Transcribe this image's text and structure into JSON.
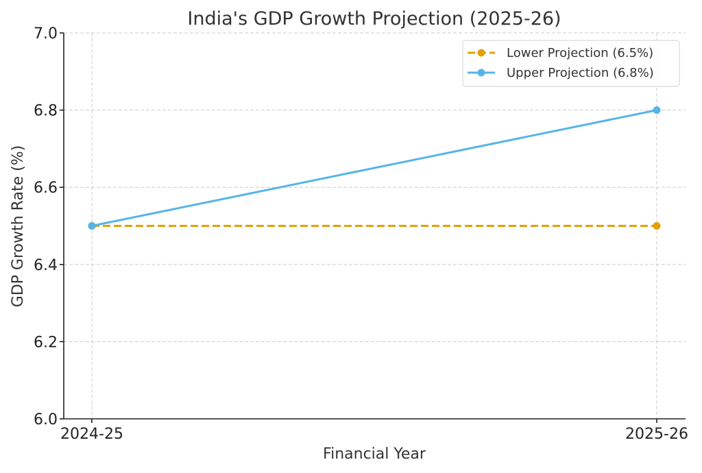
{
  "chart_data": {
    "type": "line",
    "title": "India's GDP Growth Projection (2025-26)",
    "xlabel": "Financial Year",
    "ylabel": "GDP Growth Rate (%)",
    "categories": [
      "2024-25",
      "2025-26"
    ],
    "ylim": [
      6.0,
      7.0
    ],
    "yticks": [
      "6.0",
      "6.2",
      "6.4",
      "6.6",
      "6.8",
      "7.0"
    ],
    "ytick_values": [
      6.0,
      6.2,
      6.4,
      6.6,
      6.8,
      7.0
    ],
    "grid": true,
    "legend_position": "top-right",
    "series": [
      {
        "name": "Lower Projection (6.5%)",
        "values": [
          6.5,
          6.5
        ],
        "color": "#E69F00",
        "linestyle": "dashed",
        "marker": "circle"
      },
      {
        "name": "Upper Projection (6.8%)",
        "values": [
          6.5,
          6.8
        ],
        "color": "#56B4E9",
        "linestyle": "solid",
        "marker": "circle"
      }
    ]
  }
}
